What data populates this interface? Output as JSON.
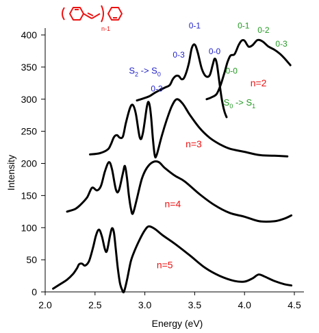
{
  "chart_data": {
    "type": "line",
    "xlabel": "Energy (eV)",
    "ylabel": "Intensity",
    "xlim": [
      2.0,
      4.5
    ],
    "ylim": [
      0,
      400
    ],
    "xticks": [
      "2.0",
      "2.5",
      "3.0",
      "3.5",
      "4.0",
      "4.5"
    ],
    "yticks": [
      "0",
      "50",
      "100",
      "150",
      "200",
      "250",
      "300",
      "350",
      "400"
    ],
    "grid": false,
    "legend": "none",
    "structure_label": "n-1",
    "colors": {
      "emission_label": "#2222cc",
      "absorption_label": "#229922",
      "n_label": "#ee1111",
      "structure": "#ee1111"
    },
    "transition_labels": [
      {
        "text": "S2 -> S0",
        "main": "S",
        "sub1": "2",
        "mid": " -> S",
        "sub2": "0",
        "color": "#2222cc",
        "x": 3.0,
        "y": 340
      },
      {
        "text": "S0 -> S1",
        "main": "S",
        "sub1": "0",
        "mid": " -> S",
        "sub2": "1",
        "color": "#229922",
        "x": 3.95,
        "y": 290
      }
    ],
    "band_labels": [
      {
        "text": "0-3",
        "color": "#2222cc",
        "x": 3.12,
        "y": 312
      },
      {
        "text": "0-3",
        "color": "#2222cc",
        "x": 3.34,
        "y": 365
      },
      {
        "text": "0-1",
        "color": "#2222cc",
        "x": 3.5,
        "y": 410
      },
      {
        "text": "0-0",
        "color": "#2222cc",
        "x": 3.7,
        "y": 370
      },
      {
        "text": "0-1",
        "color": "#229922",
        "x": 3.99,
        "y": 410
      },
      {
        "text": "0-2",
        "color": "#229922",
        "x": 4.19,
        "y": 403
      },
      {
        "text": "0-3",
        "color": "#229922",
        "x": 4.37,
        "y": 382
      },
      {
        "text": "0-0",
        "color": "#229922",
        "x": 3.87,
        "y": 340
      }
    ],
    "n_labels": [
      {
        "text": "n=2",
        "x": 4.14,
        "y": 320
      },
      {
        "text": "n=3",
        "x": 3.49,
        "y": 225
      },
      {
        "text": "n=4",
        "x": 3.28,
        "y": 132
      },
      {
        "text": "n=5",
        "x": 3.2,
        "y": 37
      }
    ],
    "series": [
      {
        "points": [
          [
            2.92,
            298
          ],
          [
            3.0,
            302
          ],
          [
            3.05,
            305
          ],
          [
            3.1,
            310
          ],
          [
            3.15,
            314
          ],
          [
            3.2,
            318
          ],
          [
            3.25,
            322
          ],
          [
            3.28,
            331
          ],
          [
            3.31,
            336
          ],
          [
            3.34,
            336
          ],
          [
            3.37,
            331
          ],
          [
            3.4,
            335
          ],
          [
            3.44,
            355
          ],
          [
            3.47,
            379
          ],
          [
            3.5,
            385
          ],
          [
            3.53,
            373
          ],
          [
            3.57,
            348
          ],
          [
            3.61,
            336
          ],
          [
            3.65,
            337
          ],
          [
            3.68,
            353
          ],
          [
            3.7,
            363
          ],
          [
            3.72,
            357
          ],
          [
            3.74,
            336
          ],
          [
            3.76,
            312
          ],
          [
            3.78,
            293
          ],
          [
            3.8,
            280
          ],
          [
            3.82,
            272
          ]
        ]
      },
      {
        "points": [
          [
            3.62,
            300
          ],
          [
            3.67,
            303
          ],
          [
            3.72,
            308
          ],
          [
            3.76,
            322
          ],
          [
            3.8,
            342
          ],
          [
            3.83,
            358
          ],
          [
            3.86,
            368
          ],
          [
            3.9,
            370
          ],
          [
            3.94,
            384
          ],
          [
            3.97,
            391
          ],
          [
            4.0,
            391
          ],
          [
            4.04,
            382
          ],
          [
            4.08,
            384
          ],
          [
            4.13,
            392
          ],
          [
            4.18,
            390
          ],
          [
            4.24,
            382
          ],
          [
            4.3,
            377
          ],
          [
            4.36,
            370
          ],
          [
            4.41,
            362
          ],
          [
            4.46,
            353
          ]
        ]
      },
      {
        "points": [
          [
            2.45,
            214
          ],
          [
            2.55,
            216
          ],
          [
            2.63,
            222
          ],
          [
            2.66,
            230
          ],
          [
            2.69,
            241
          ],
          [
            2.72,
            244
          ],
          [
            2.75,
            240
          ],
          [
            2.78,
            242
          ],
          [
            2.81,
            263
          ],
          [
            2.85,
            286
          ],
          [
            2.88,
            291
          ],
          [
            2.91,
            277
          ],
          [
            2.95,
            240
          ],
          [
            2.98,
            247
          ],
          [
            3.02,
            288
          ],
          [
            3.04,
            295
          ],
          [
            3.06,
            277
          ],
          [
            3.08,
            240
          ],
          [
            3.1,
            212
          ],
          [
            3.12,
            214
          ],
          [
            3.17,
            243
          ],
          [
            3.22,
            268
          ],
          [
            3.27,
            289
          ],
          [
            3.32,
            300
          ],
          [
            3.38,
            293
          ],
          [
            3.45,
            276
          ],
          [
            3.55,
            255
          ],
          [
            3.65,
            240
          ],
          [
            3.75,
            230
          ],
          [
            3.85,
            223
          ],
          [
            4.0,
            218
          ],
          [
            4.15,
            213
          ],
          [
            4.3,
            212
          ],
          [
            4.43,
            211
          ]
        ]
      },
      {
        "points": [
          [
            2.22,
            125
          ],
          [
            2.3,
            129
          ],
          [
            2.35,
            135
          ],
          [
            2.42,
            147
          ],
          [
            2.47,
            162
          ],
          [
            2.52,
            158
          ],
          [
            2.56,
            165
          ],
          [
            2.6,
            188
          ],
          [
            2.64,
            202
          ],
          [
            2.67,
            191
          ],
          [
            2.71,
            159
          ],
          [
            2.74,
            158
          ],
          [
            2.78,
            185
          ],
          [
            2.8,
            196
          ],
          [
            2.82,
            178
          ],
          [
            2.84,
            150
          ],
          [
            2.86,
            130
          ],
          [
            2.88,
            122
          ],
          [
            2.92,
            145
          ],
          [
            2.97,
            176
          ],
          [
            3.02,
            193
          ],
          [
            3.08,
            202
          ],
          [
            3.14,
            202
          ],
          [
            3.2,
            193
          ],
          [
            3.3,
            181
          ],
          [
            3.4,
            172
          ],
          [
            3.55,
            152
          ],
          [
            3.7,
            135
          ],
          [
            3.85,
            123
          ],
          [
            4.0,
            117
          ],
          [
            4.15,
            110
          ],
          [
            4.3,
            110
          ],
          [
            4.4,
            114
          ],
          [
            4.47,
            119
          ]
        ]
      },
      {
        "points": [
          [
            2.08,
            5
          ],
          [
            2.15,
            12
          ],
          [
            2.22,
            19
          ],
          [
            2.28,
            28
          ],
          [
            2.32,
            37
          ],
          [
            2.34,
            43
          ],
          [
            2.37,
            44
          ],
          [
            2.4,
            41
          ],
          [
            2.44,
            48
          ],
          [
            2.48,
            69
          ],
          [
            2.51,
            88
          ],
          [
            2.54,
            97
          ],
          [
            2.57,
            86
          ],
          [
            2.6,
            66
          ],
          [
            2.62,
            64
          ],
          [
            2.65,
            87
          ],
          [
            2.67,
            99
          ],
          [
            2.69,
            92
          ],
          [
            2.71,
            64
          ],
          [
            2.73,
            35
          ],
          [
            2.75,
            14
          ],
          [
            2.77,
            4
          ],
          [
            2.79,
            0
          ],
          [
            2.82,
            18
          ],
          [
            2.86,
            48
          ],
          [
            2.9,
            65
          ],
          [
            2.95,
            82
          ],
          [
            3.0,
            96
          ],
          [
            3.04,
            102
          ],
          [
            3.1,
            98
          ],
          [
            3.18,
            88
          ],
          [
            3.3,
            75
          ],
          [
            3.45,
            57
          ],
          [
            3.6,
            38
          ],
          [
            3.75,
            25
          ],
          [
            3.9,
            17
          ],
          [
            4.0,
            16
          ],
          [
            4.08,
            21
          ],
          [
            4.14,
            27
          ],
          [
            4.2,
            24
          ],
          [
            4.3,
            17
          ],
          [
            4.4,
            12
          ],
          [
            4.47,
            10
          ]
        ]
      }
    ]
  }
}
